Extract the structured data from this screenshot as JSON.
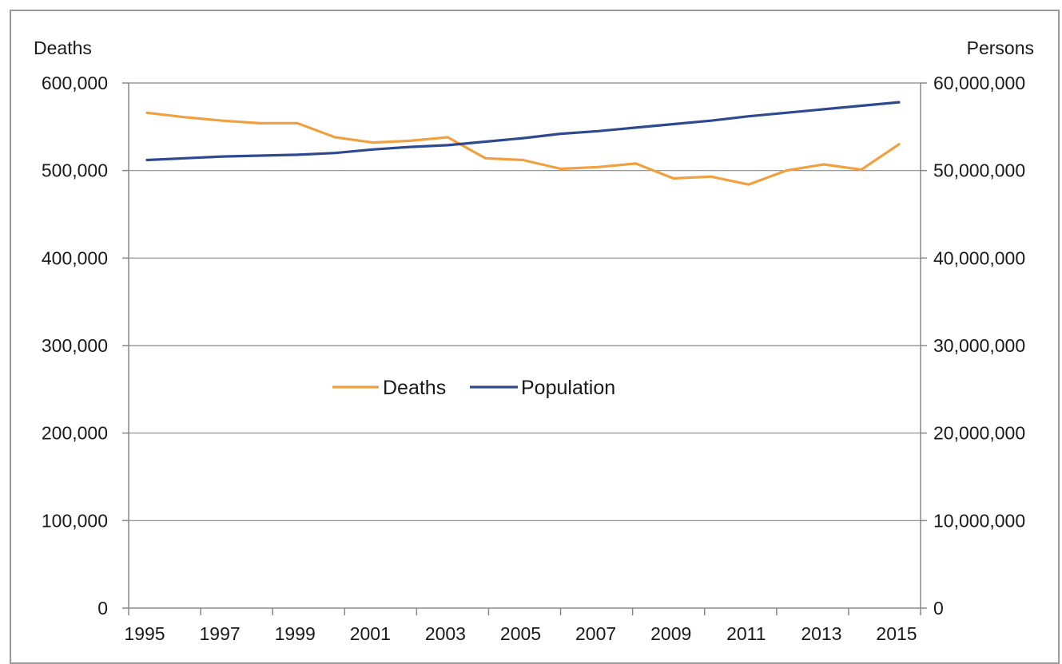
{
  "chart_data": {
    "type": "line",
    "title": "",
    "x": [
      1995,
      1996,
      1997,
      1998,
      1999,
      2000,
      2001,
      2002,
      2003,
      2004,
      2005,
      2006,
      2007,
      2008,
      2009,
      2010,
      2011,
      2012,
      2013,
      2014,
      2015
    ],
    "x_tick_labels": [
      "1995",
      "1997",
      "1999",
      "2001",
      "2003",
      "2005",
      "2007",
      "2009",
      "2011",
      "2013",
      "2015"
    ],
    "y_left": {
      "label": "Deaths",
      "range": [
        0,
        600000
      ],
      "ticks": [
        0,
        100000,
        200000,
        300000,
        400000,
        500000,
        600000
      ],
      "tick_labels": [
        "0",
        "100,000",
        "200,000",
        "300,000",
        "400,000",
        "500,000",
        "600,000"
      ]
    },
    "y_right": {
      "label": "Persons",
      "range": [
        0,
        60000000
      ],
      "ticks": [
        0,
        10000000,
        20000000,
        30000000,
        40000000,
        50000000,
        60000000
      ],
      "tick_labels": [
        "0",
        "10,000,000",
        "20,000,000",
        "30,000,000",
        "40,000,000",
        "50,000,000",
        "60,000,000"
      ]
    },
    "grid": true,
    "legend": "center",
    "series": [
      {
        "name": "Deaths",
        "axis": "left",
        "color": "#f0a040",
        "values": [
          566000,
          561000,
          557000,
          554000,
          554000,
          538000,
          532000,
          534000,
          538000,
          514000,
          512000,
          502000,
          504000,
          508000,
          491000,
          493000,
          484000,
          500000,
          507000,
          501000,
          530000
        ]
      },
      {
        "name": "Population",
        "axis": "right",
        "color": "#2e4a8e",
        "values": [
          51200000,
          51400000,
          51600000,
          51700000,
          51800000,
          52000000,
          52400000,
          52700000,
          52900000,
          53300000,
          53700000,
          54200000,
          54500000,
          54900000,
          55300000,
          55700000,
          56200000,
          56600000,
          57000000,
          57400000,
          57800000
        ]
      }
    ]
  }
}
